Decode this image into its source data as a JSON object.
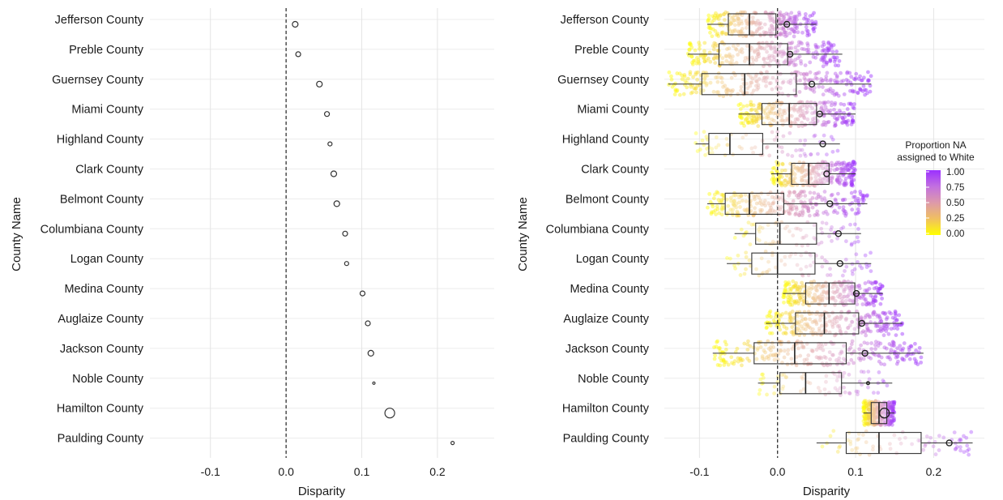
{
  "chart_data": [
    {
      "type": "scatter",
      "panel": "left",
      "xlabel": "Disparity",
      "ylabel": "County Name",
      "xlim": [
        -0.18,
        0.275
      ],
      "x_ticks": [
        "-0.1",
        "0.0",
        "0.1",
        "0.2"
      ],
      "x_tick_values": [
        -0.1,
        0.0,
        0.1,
        0.2
      ],
      "reference_line": 0.0,
      "grid": true,
      "categories": [
        "Jefferson County",
        "Preble County",
        "Guernsey County",
        "Miami County",
        "Highland County",
        "Clark County",
        "Belmont County",
        "Columbiana County",
        "Logan County",
        "Medina County",
        "Auglaize County",
        "Jackson County",
        "Noble County",
        "Hamilton County",
        "Paulding County"
      ],
      "values": [
        0.012,
        0.016,
        0.044,
        0.054,
        0.058,
        0.063,
        0.067,
        0.078,
        0.08,
        0.101,
        0.108,
        0.112,
        0.116,
        0.137,
        0.22
      ],
      "point_size": [
        3.5,
        3,
        3.5,
        3,
        2.5,
        3.5,
        3.5,
        3,
        2.5,
        3,
        3,
        3.5,
        1.5,
        6,
        2
      ]
    },
    {
      "type": "box",
      "panel": "right",
      "xlabel": "Disparity",
      "ylabel": "County Name",
      "xlim": [
        -0.145,
        0.265
      ],
      "x_ticks": [
        "-0.1",
        "0.0",
        "0.1",
        "0.2"
      ],
      "x_tick_values": [
        -0.1,
        0.0,
        0.1,
        0.2
      ],
      "reference_line": 0.0,
      "grid": true,
      "legend": {
        "title": [
          "Proportion NA",
          "assigned to White"
        ],
        "position": "right",
        "ticks": [
          "1.00",
          "0.75",
          "0.50",
          "0.25",
          "0.00"
        ],
        "colors": [
          "#ffff00",
          "#f0c060",
          "#dd99aa",
          "#c270e0",
          "#9b30ff"
        ]
      },
      "categories": [
        "Jefferson County",
        "Preble County",
        "Guernsey County",
        "Miami County",
        "Highland County",
        "Clark County",
        "Belmont County",
        "Columbiana County",
        "Logan County",
        "Medina County",
        "Auglaize County",
        "Jackson County",
        "Noble County",
        "Hamilton County",
        "Paulding County"
      ],
      "boxes": [
        {
          "min": -0.09,
          "q1": -0.063,
          "median": -0.036,
          "q3": -0.002,
          "max": 0.05,
          "mean": 0.012,
          "range": [
            -0.09,
            0.05
          ],
          "dense": true
        },
        {
          "min": -0.115,
          "q1": -0.075,
          "median": -0.036,
          "q3": 0.013,
          "max": 0.083,
          "mean": 0.016,
          "range": [
            -0.115,
            0.08
          ],
          "dense": true
        },
        {
          "min": -0.14,
          "q1": -0.097,
          "median": -0.042,
          "q3": 0.024,
          "max": 0.12,
          "mean": 0.044,
          "range": [
            -0.14,
            0.12
          ],
          "dense": true
        },
        {
          "min": -0.05,
          "q1": -0.02,
          "median": 0.015,
          "q3": 0.05,
          "max": 0.1,
          "mean": 0.054,
          "range": [
            -0.05,
            0.1
          ],
          "dense": true
        },
        {
          "min": -0.105,
          "q1": -0.088,
          "median": -0.061,
          "q3": -0.019,
          "max": 0.08,
          "mean": 0.058,
          "range": [
            -0.105,
            0.08
          ],
          "dense": false
        },
        {
          "min": -0.008,
          "q1": 0.018,
          "median": 0.04,
          "q3": 0.066,
          "max": 0.1,
          "mean": 0.063,
          "range": [
            -0.008,
            0.1
          ],
          "dense": true
        },
        {
          "min": -0.09,
          "q1": -0.067,
          "median": -0.036,
          "q3": 0.008,
          "max": 0.115,
          "mean": 0.067,
          "range": [
            -0.09,
            0.115
          ],
          "dense": true
        },
        {
          "min": -0.055,
          "q1": -0.028,
          "median": 0.003,
          "q3": 0.05,
          "max": 0.107,
          "mean": 0.078,
          "range": [
            -0.055,
            0.11
          ],
          "dense": false
        },
        {
          "min": -0.065,
          "q1": -0.033,
          "median": 0.0,
          "q3": 0.048,
          "max": 0.12,
          "mean": 0.08,
          "range": [
            -0.065,
            0.12
          ],
          "dense": false
        },
        {
          "min": 0.007,
          "q1": 0.036,
          "median": 0.066,
          "q3": 0.099,
          "max": 0.135,
          "mean": 0.101,
          "range": [
            0.007,
            0.135
          ],
          "dense": true
        },
        {
          "min": -0.015,
          "q1": 0.023,
          "median": 0.06,
          "q3": 0.104,
          "max": 0.16,
          "mean": 0.108,
          "range": [
            -0.015,
            0.16
          ],
          "dense": true
        },
        {
          "min": -0.083,
          "q1": -0.03,
          "median": 0.022,
          "q3": 0.088,
          "max": 0.187,
          "mean": 0.112,
          "range": [
            -0.083,
            0.187
          ],
          "dense": true
        },
        {
          "min": -0.025,
          "q1": 0.003,
          "median": 0.036,
          "q3": 0.082,
          "max": 0.147,
          "mean": 0.116,
          "range": [
            -0.025,
            0.147
          ],
          "dense": false
        },
        {
          "min": 0.11,
          "q1": 0.12,
          "median": 0.13,
          "q3": 0.14,
          "max": 0.15,
          "mean": 0.137,
          "range": [
            0.11,
            0.15
          ],
          "dense": true
        },
        {
          "min": 0.05,
          "q1": 0.088,
          "median": 0.13,
          "q3": 0.184,
          "max": 0.25,
          "mean": 0.22,
          "range": [
            0.05,
            0.25
          ],
          "dense": false
        }
      ]
    }
  ]
}
